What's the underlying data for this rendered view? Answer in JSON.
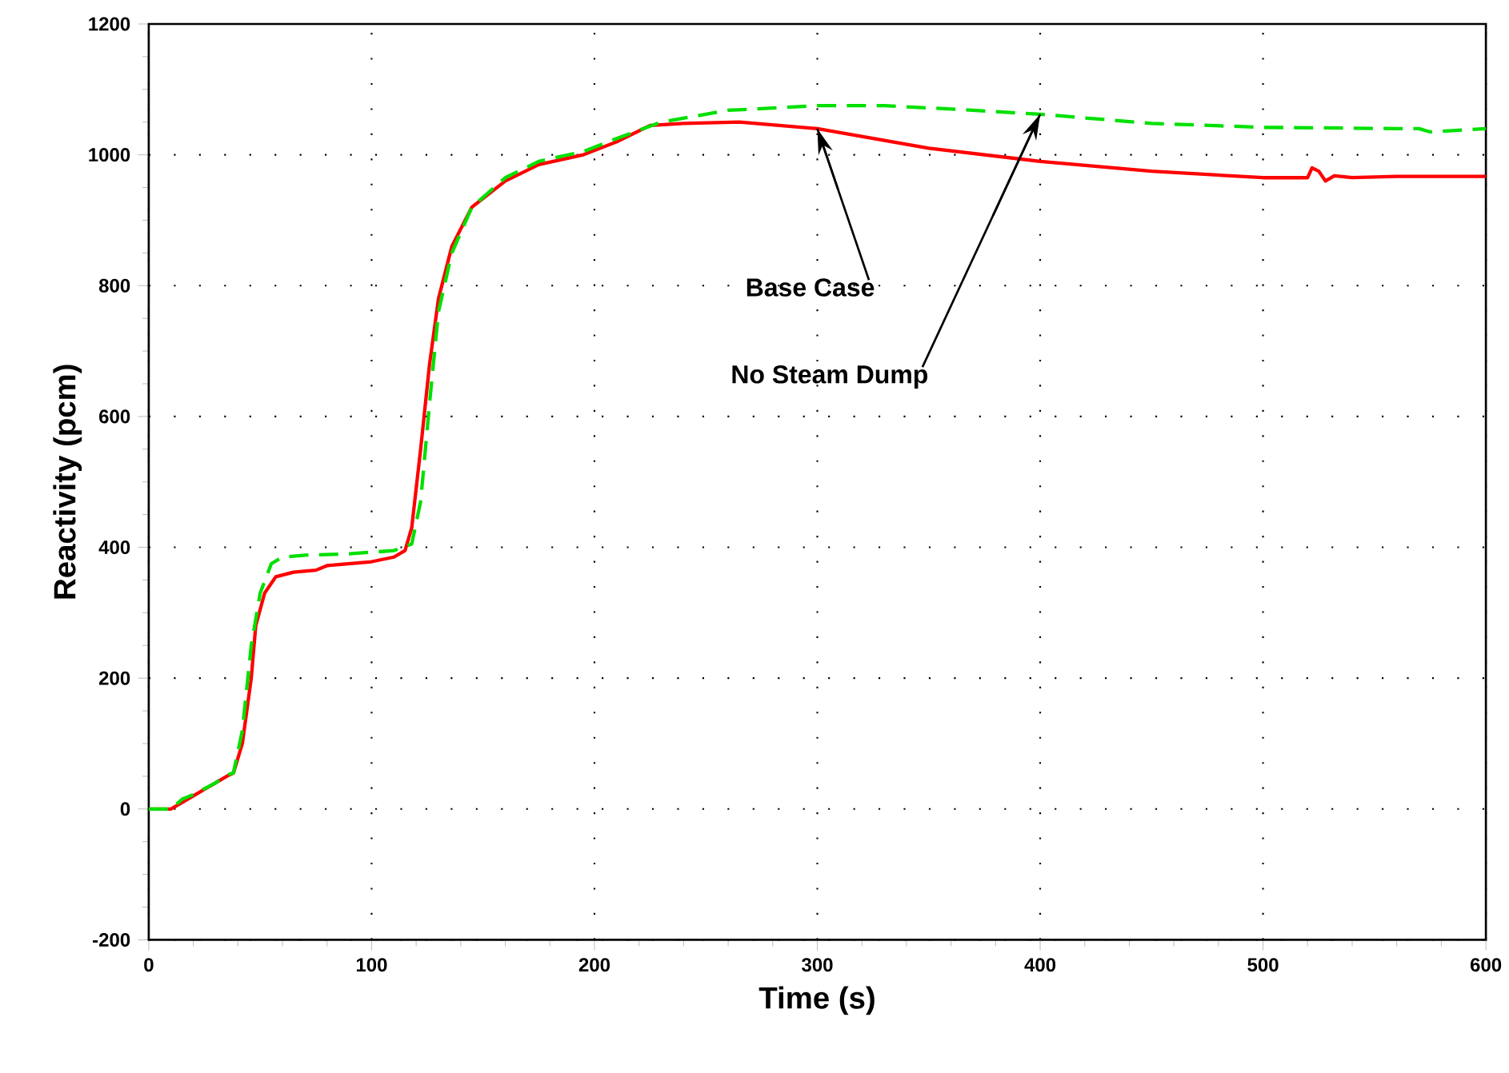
{
  "chart_data": {
    "type": "line",
    "xlabel": "Time  (s)",
    "ylabel": "Reactivity (pcm)",
    "xlim": [
      0,
      600
    ],
    "ylim": [
      -200,
      1200
    ],
    "xticks": [
      0,
      100,
      200,
      300,
      400,
      500,
      600
    ],
    "yticks": [
      -200,
      0,
      200,
      400,
      600,
      800,
      1000,
      1200
    ],
    "grid": true,
    "series": [
      {
        "color": "#ff0000",
        "line_style": "solid",
        "x": [
          0,
          10,
          15,
          20,
          30,
          35,
          38,
          42,
          46,
          48,
          52,
          57,
          65,
          75,
          80,
          100,
          110,
          115,
          118,
          122,
          126,
          130,
          136,
          145,
          160,
          175,
          195,
          210,
          225,
          240,
          265,
          300,
          350,
          400,
          450,
          500,
          520,
          522,
          525,
          528,
          532,
          540,
          560,
          600
        ],
        "values": [
          0,
          0,
          10,
          20,
          40,
          50,
          55,
          100,
          200,
          280,
          330,
          355,
          362,
          365,
          372,
          378,
          385,
          395,
          430,
          550,
          680,
          780,
          860,
          920,
          960,
          985,
          1000,
          1020,
          1045,
          1048,
          1050,
          1040,
          1010,
          990,
          975,
          965,
          965,
          980,
          975,
          960,
          968,
          965,
          967,
          967
        ]
      },
      {
        "color": "#00e000",
        "line_style": "dashed",
        "x": [
          0,
          10,
          15,
          20,
          30,
          35,
          38,
          42,
          46,
          50,
          55,
          60,
          70,
          90,
          110,
          118,
          122,
          126,
          130,
          136,
          145,
          160,
          175,
          195,
          210,
          230,
          260,
          300,
          330,
          360,
          400,
          450,
          500,
          560,
          570,
          575,
          580,
          600
        ],
        "values": [
          0,
          0,
          15,
          22,
          40,
          52,
          55,
          120,
          250,
          330,
          375,
          385,
          388,
          390,
          395,
          405,
          470,
          620,
          760,
          850,
          920,
          965,
          990,
          1005,
          1025,
          1050,
          1068,
          1075,
          1075,
          1070,
          1062,
          1048,
          1042,
          1040,
          1040,
          1035,
          1036,
          1040
        ]
      }
    ],
    "annotations": [
      {
        "text": "Base Case",
        "x": 300,
        "y": 1040
      },
      {
        "text": "No Steam Dump",
        "x": 400,
        "y": 1062
      }
    ]
  }
}
